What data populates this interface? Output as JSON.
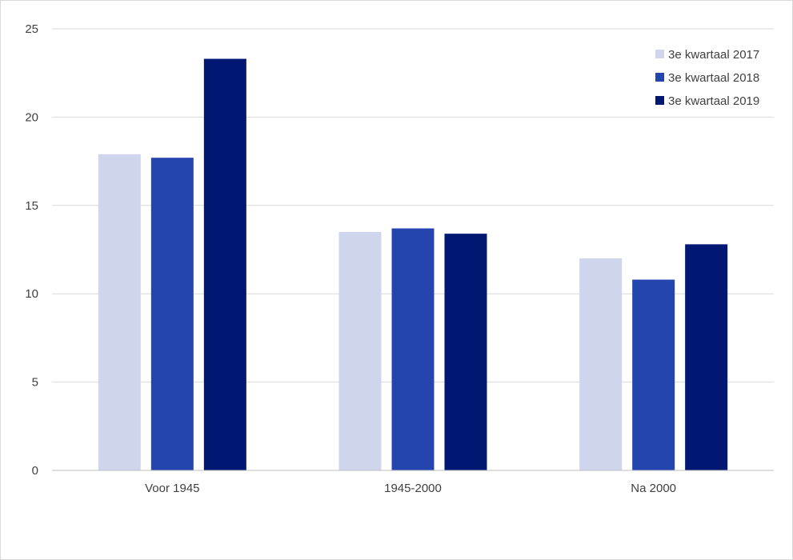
{
  "chart_data": {
    "type": "bar",
    "title": "",
    "xlabel": "",
    "ylabel": "",
    "categories": [
      "Voor 1945",
      "1945-2000",
      "Na 2000"
    ],
    "series": [
      {
        "name": "3e kwartaal 2017",
        "color": "#cfd5ec",
        "values": [
          17.9,
          13.5,
          12.0
        ]
      },
      {
        "name": "3e kwartaal 2018",
        "color": "#2445ad",
        "values": [
          17.7,
          13.7,
          10.8
        ]
      },
      {
        "name": "3e kwartaal 2019",
        "color": "#001871",
        "values": [
          23.3,
          13.4,
          12.8
        ]
      }
    ],
    "yticks": [
      0,
      5,
      10,
      15,
      20,
      25
    ],
    "ylim": [
      0,
      25
    ],
    "grid": true,
    "legend_position": "top-right"
  }
}
